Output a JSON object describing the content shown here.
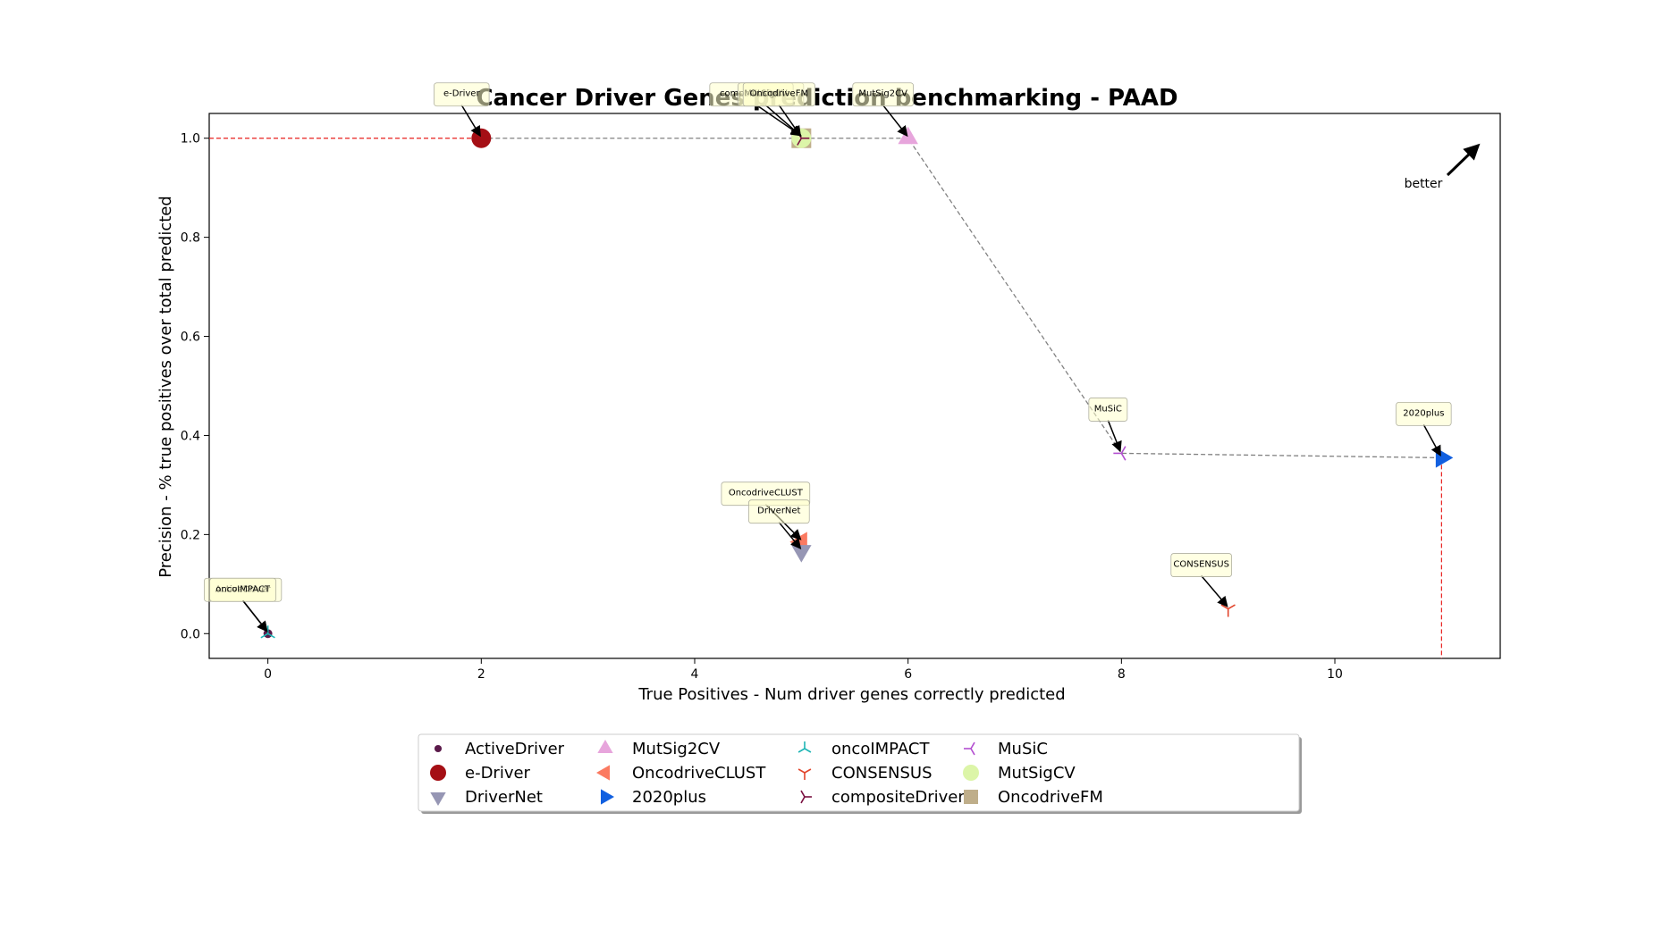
{
  "chart_data": {
    "type": "scatter",
    "title": "Cancer Driver Genes prediction benchmarking - PAAD",
    "xlabel": "True Positives - Num driver genes correctly predicted",
    "ylabel": "Precision - % true positives over total predicted",
    "xlim": [
      -0.55,
      11.55
    ],
    "ylim": [
      -0.05,
      1.05
    ],
    "xticks": [
      0,
      2,
      4,
      6,
      8,
      10
    ],
    "yticks": [
      0.0,
      0.2,
      0.4,
      0.6,
      0.8,
      1.0
    ],
    "better_label": "better",
    "legend_position": "below plot",
    "pareto_front": [
      [
        2,
        1.0
      ],
      [
        5,
        1.0
      ],
      [
        6,
        1.0
      ],
      [
        8,
        0.364
      ],
      [
        11,
        0.355
      ]
    ],
    "series": [
      {
        "name": "ActiveDriver",
        "x": 0,
        "y": 0.0,
        "marker": "dot",
        "color": "#5b1a4a"
      },
      {
        "name": "e-Driver",
        "x": 2,
        "y": 1.0,
        "marker": "circle",
        "color": "#a50f15"
      },
      {
        "name": "DriverNet",
        "x": 5,
        "y": 0.167,
        "marker": "triangle-down",
        "color": "#9696b4"
      },
      {
        "name": "MutSig2CV",
        "x": 6,
        "y": 1.0,
        "marker": "triangle-up",
        "color": "#e7a5dc"
      },
      {
        "name": "OncodriveCLUST",
        "x": 5,
        "y": 0.185,
        "marker": "triangle-left",
        "color": "#fb7a61"
      },
      {
        "name": "2020plus",
        "x": 11,
        "y": 0.355,
        "marker": "triangle-right",
        "color": "#1260e0"
      },
      {
        "name": "oncoIMPACT",
        "x": 0,
        "y": 0.0,
        "marker": "tri-down",
        "color": "#1fb5b5"
      },
      {
        "name": "CONSENSUS",
        "x": 9,
        "y": 0.05,
        "marker": "tri-up",
        "color": "#e2452c"
      },
      {
        "name": "compositeDriver",
        "x": 5,
        "y": 1.0,
        "marker": "tri-left",
        "color": "#7a1040"
      },
      {
        "name": "MuSiC",
        "x": 8,
        "y": 0.364,
        "marker": "tri-right",
        "color": "#b34fd0"
      },
      {
        "name": "MutSigCV",
        "x": 5,
        "y": 1.0,
        "marker": "circle",
        "color": "#dcf5a8"
      },
      {
        "name": "OncodriveFM",
        "x": 5,
        "y": 1.0,
        "marker": "square",
        "color": "#bfae8a"
      }
    ],
    "annotations": [
      {
        "text": "ActiveDriver",
        "x": 0,
        "y": 0.0
      },
      {
        "text": "oncoIMPACT",
        "x": 0,
        "y": 0.0
      },
      {
        "text": "e-Driver",
        "x": 2,
        "y": 1.0
      },
      {
        "text": "compositeDriver",
        "x": 5,
        "y": 1.0
      },
      {
        "text": "MutSigCV",
        "x": 5,
        "y": 1.0
      },
      {
        "text": "OncodriveFM",
        "x": 5,
        "y": 1.0
      },
      {
        "text": "MutSig2CV",
        "x": 6,
        "y": 1.0
      },
      {
        "text": "OncodriveCLUST",
        "x": 5,
        "y": 0.185
      },
      {
        "text": "DriverNet",
        "x": 5,
        "y": 0.167
      },
      {
        "text": "MuSiC",
        "x": 8,
        "y": 0.364
      },
      {
        "text": "2020plus",
        "x": 11,
        "y": 0.355
      },
      {
        "text": "CONSENSUS",
        "x": 9,
        "y": 0.05
      }
    ]
  }
}
